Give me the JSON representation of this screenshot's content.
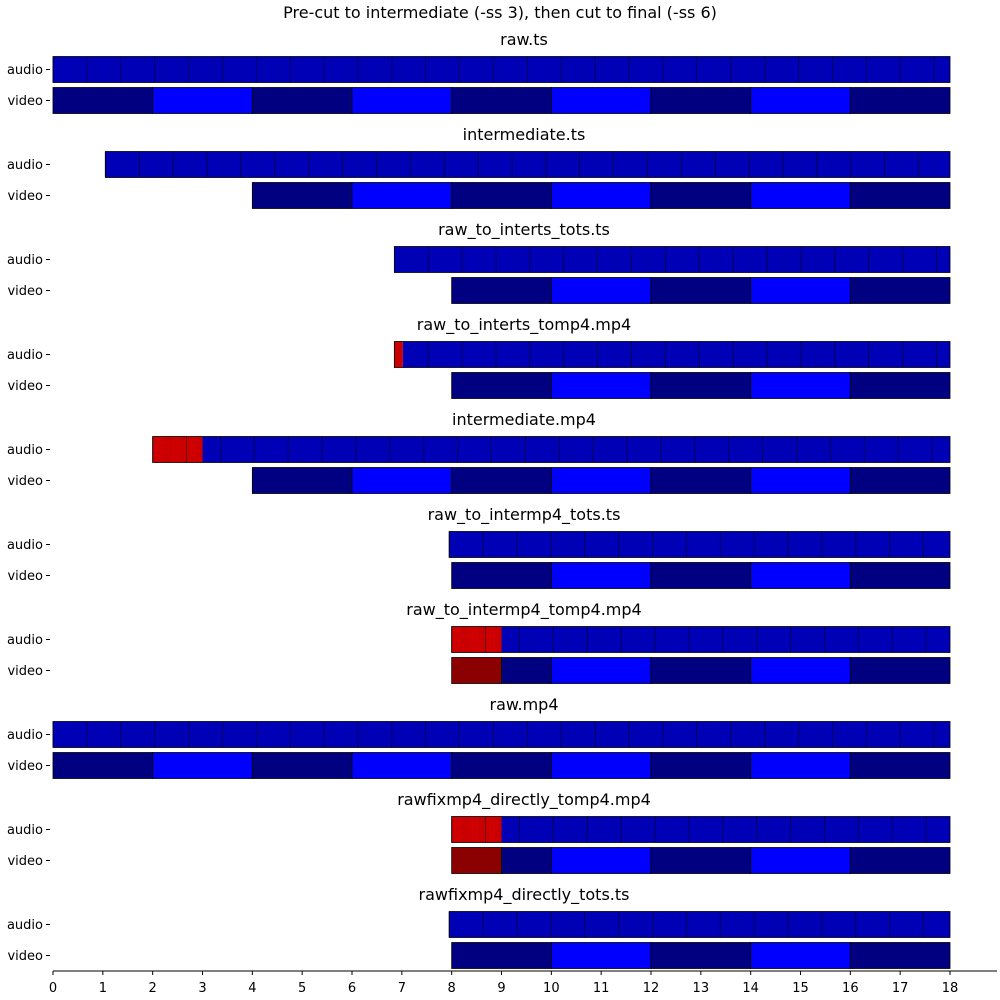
{
  "chart_data": {
    "type": "timeline",
    "title": "Pre-cut to intermediate (-ss 3), then cut to final (-ss 6)",
    "xlim": [
      0,
      18
    ],
    "x_ticks": [
      0,
      1,
      2,
      3,
      4,
      5,
      6,
      7,
      8,
      9,
      10,
      11,
      12,
      13,
      14,
      15,
      16,
      17,
      18
    ],
    "track_labels": [
      "audio",
      "video"
    ],
    "colors": {
      "audio_normal": "#0000cd",
      "audio_discard": "#e60000",
      "video_gop_dark": "#000080",
      "video_gop_light": "#0000ff",
      "video_discard": "#8b0000",
      "packet_edge": "#000000"
    },
    "panels": [
      {
        "name": "raw.ts",
        "audio": {
          "start": 0,
          "end": 18,
          "discard_until": null
        },
        "video": {
          "start": 0,
          "end": 18,
          "discard_until": null
        }
      },
      {
        "name": "intermediate.ts",
        "audio": {
          "start": 1.05,
          "end": 18,
          "discard_until": null
        },
        "video": {
          "start": 4,
          "end": 18,
          "discard_until": null
        }
      },
      {
        "name": "raw_to_interts_tots.ts",
        "audio": {
          "start": 6.85,
          "end": 18,
          "discard_until": null
        },
        "video": {
          "start": 8,
          "end": 18,
          "discard_until": null
        }
      },
      {
        "name": "raw_to_interts_tomp4.mp4",
        "audio": {
          "start": 6.85,
          "end": 18,
          "discard_until": 7.02
        },
        "video": {
          "start": 8,
          "end": 18,
          "discard_until": null
        }
      },
      {
        "name": "intermediate.mp4",
        "audio": {
          "start": 2,
          "end": 18,
          "discard_until": 3
        },
        "video": {
          "start": 4,
          "end": 18,
          "discard_until": null
        }
      },
      {
        "name": "raw_to_intermp4_tots.ts",
        "audio": {
          "start": 7.95,
          "end": 18,
          "discard_until": null
        },
        "video": {
          "start": 8,
          "end": 18,
          "discard_until": null
        }
      },
      {
        "name": "raw_to_intermp4_tomp4.mp4",
        "audio": {
          "start": 8,
          "end": 18,
          "discard_until": 9
        },
        "video": {
          "start": 8,
          "end": 18,
          "discard_until": 9
        }
      },
      {
        "name": "raw.mp4",
        "audio": {
          "start": 0,
          "end": 18,
          "discard_until": null
        },
        "video": {
          "start": 0,
          "end": 18,
          "discard_until": null
        }
      },
      {
        "name": "rawfixmp4_directly_tomp4.mp4",
        "audio": {
          "start": 8,
          "end": 18,
          "discard_until": 9
        },
        "video": {
          "start": 8,
          "end": 18,
          "discard_until": 9
        }
      },
      {
        "name": "rawfixmp4_directly_tots.ts",
        "audio": {
          "start": 7.95,
          "end": 18,
          "discard_until": null
        },
        "video": {
          "start": 8,
          "end": 18,
          "discard_until": null
        }
      }
    ],
    "video_gop_length": 2,
    "audio_packet_duration": 0.021333,
    "audio_tick_group": 0.68,
    "grid": false,
    "legend": "none"
  }
}
